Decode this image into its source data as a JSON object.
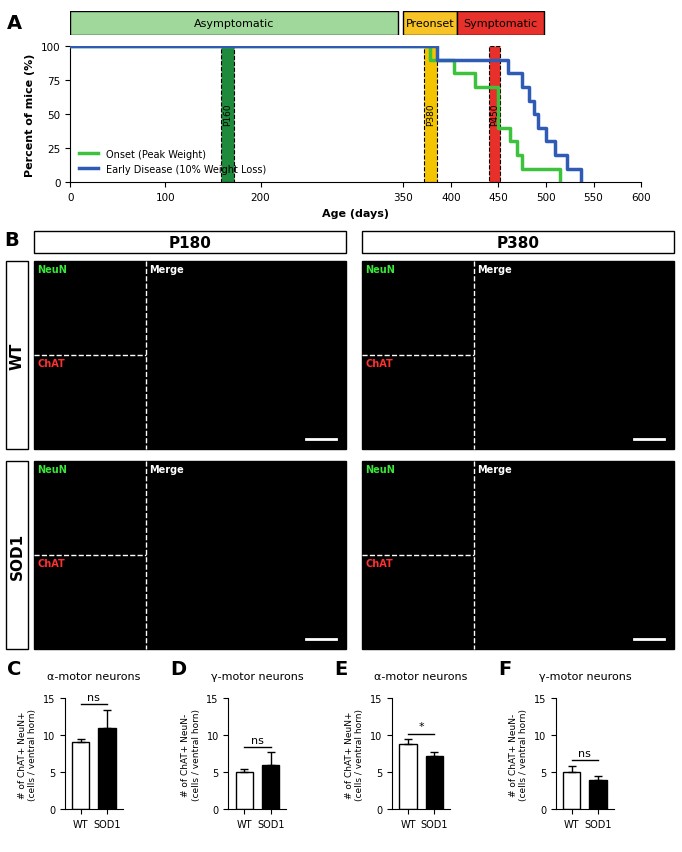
{
  "chart_data": [
    {
      "panel": "A",
      "type": "line",
      "xlabel": "Age (days)",
      "ylabel": "Percent of mice (%)",
      "xlim": [
        0,
        600
      ],
      "xticks": [
        0,
        100,
        200,
        350,
        400,
        450,
        500,
        550,
        600
      ],
      "ylim": [
        0,
        100
      ],
      "yticks": [
        0,
        25,
        50,
        75,
        100
      ],
      "legend": "lower left",
      "stages": [
        {
          "label": "Asymptomatic",
          "start": 0,
          "end": 345,
          "color": "#9fd89a"
        },
        {
          "label": "Preonset",
          "start": 350,
          "end": 407,
          "color": "#f7c325"
        },
        {
          "label": "Symptomatic",
          "start": 407,
          "end": 498,
          "color": "#e8312b"
        }
      ],
      "windows": [
        {
          "label": "P160",
          "start": 158,
          "end": 172,
          "color": "#1f8a3c"
        },
        {
          "label": "P380",
          "start": 372,
          "end": 385,
          "color": "#f5c400"
        },
        {
          "label": "P450",
          "start": 440,
          "end": 452,
          "color": "#e8302a"
        }
      ],
      "series": [
        {
          "name": "Onset (Peak Weight)",
          "color": "#3cc23c",
          "line_style": "steps",
          "x": [
            0,
            378,
            403,
            425,
            450,
            462,
            470,
            475,
            515
          ],
          "values": [
            100,
            90,
            80,
            70,
            40,
            30,
            20,
            10,
            0
          ]
        },
        {
          "name": "Early Disease (10% Weight Loss)",
          "color": "#2f5bb5",
          "line_style": "steps",
          "x": [
            0,
            386,
            460,
            475,
            482,
            487,
            492,
            500,
            510,
            522,
            537
          ],
          "values": [
            100,
            90,
            80,
            70,
            60,
            50,
            40,
            30,
            20,
            10,
            0
          ]
        }
      ]
    },
    {
      "panel": "C",
      "type": "bar",
      "title": "α-motor neurons",
      "ylabel": "# of ChAT+ NeuN+\n(cells / ventral horn)",
      "categories": [
        "WT",
        "SOD1"
      ],
      "values": [
        9.1,
        11.0
      ],
      "errors": [
        0.4,
        2.5
      ],
      "colors": [
        "#ffffff",
        "#000000"
      ],
      "significance": "ns",
      "ylim": [
        0,
        15
      ],
      "yticks": [
        0,
        5,
        10,
        15
      ]
    },
    {
      "panel": "D",
      "type": "bar",
      "title": "γ-motor neurons",
      "ylabel": "# of ChAT+ NeuN-\n(cells / ventral horn)",
      "categories": [
        "WT",
        "SOD1"
      ],
      "values": [
        5.0,
        6.0
      ],
      "errors": [
        0.4,
        1.7
      ],
      "colors": [
        "#ffffff",
        "#000000"
      ],
      "significance": "ns",
      "ylim": [
        0,
        15
      ],
      "yticks": [
        0,
        5,
        10,
        15
      ]
    },
    {
      "panel": "E",
      "type": "bar",
      "title": "α-motor neurons",
      "ylabel": "# of ChAT+ NeuN+\n(cells / ventral horn)",
      "categories": [
        "WT",
        "SOD1"
      ],
      "values": [
        8.9,
        7.2
      ],
      "errors": [
        0.6,
        0.5
      ],
      "colors": [
        "#ffffff",
        "#000000"
      ],
      "significance": "*",
      "ylim": [
        0,
        15
      ],
      "yticks": [
        0,
        5,
        10,
        15
      ]
    },
    {
      "panel": "F",
      "type": "bar",
      "title": "γ-motor neurons",
      "ylabel": "# of ChAT+ NeuN-\n(cells / ventral horn)",
      "categories": [
        "WT",
        "SOD1"
      ],
      "values": [
        5.1,
        4.0
      ],
      "errors": [
        0.8,
        0.5
      ],
      "colors": [
        "#ffffff",
        "#000000"
      ],
      "significance": "ns",
      "ylim": [
        0,
        15
      ],
      "yticks": [
        0,
        5,
        10,
        15
      ]
    }
  ],
  "panel_B": {
    "panel": "B",
    "columns": [
      "P180",
      "P380"
    ],
    "rows": [
      "WT",
      "SOD1"
    ],
    "channels": [
      "NeuN",
      "ChAT"
    ],
    "merge": "Merge"
  }
}
